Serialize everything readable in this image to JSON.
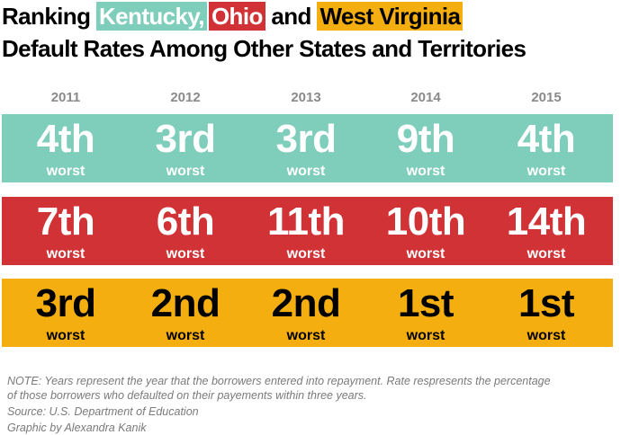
{
  "title": {
    "prefix": "Ranking",
    "state1": "Kentucky,",
    "state2": "Ohio",
    "joiner": "and",
    "state3": "West Virginia",
    "line2": "Default Rates Among Other States and Territories"
  },
  "colors": {
    "Kentucky": "#7fcdbb",
    "Ohio": "#d03235",
    "West Virginia": "#f4ae0f"
  },
  "chart_data": {
    "type": "table",
    "categories": [
      "2011",
      "2012",
      "2013",
      "2014",
      "2015"
    ],
    "series": [
      {
        "name": "Kentucky",
        "values": [
          "4th",
          "3rd",
          "3rd",
          "9th",
          "4th"
        ],
        "ranks": [
          4,
          3,
          3,
          9,
          4
        ]
      },
      {
        "name": "Ohio",
        "values": [
          "7th",
          "6th",
          "11th",
          "10th",
          "14th"
        ],
        "ranks": [
          7,
          6,
          11,
          10,
          14
        ]
      },
      {
        "name": "West Virginia",
        "values": [
          "3rd",
          "2nd",
          "2nd",
          "1st",
          "1st"
        ],
        "ranks": [
          3,
          2,
          2,
          1,
          1
        ]
      }
    ],
    "sublabel": "worst"
  },
  "notes": {
    "note1": "NOTE: Years represent the year that the borrowers entered into repayment. Rate respresents the percentage",
    "note2": "of those borrowers who defaulted on their payements within three years.",
    "source": "Source: U.S. Department of Education",
    "credit": "Graphic by Alexandra Kanik"
  }
}
